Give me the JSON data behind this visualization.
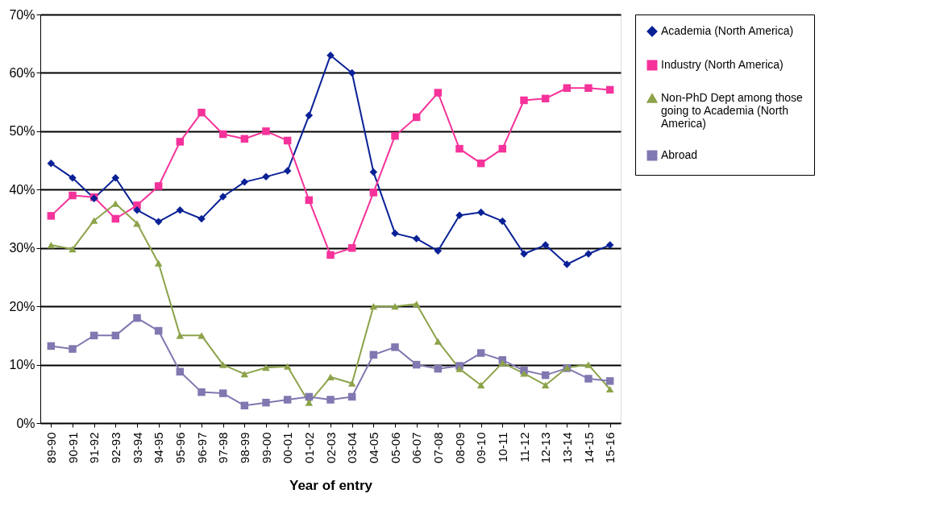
{
  "chart_data": {
    "type": "line",
    "xlabel": "Year of entry",
    "categories": [
      "89-90",
      "90-91",
      "91-92",
      "92-93",
      "93-94",
      "94-95",
      "95-96",
      "96-97",
      "97-98",
      "98-99",
      "99-00",
      "00-01",
      "01-02",
      "02-03",
      "03-04",
      "04-05",
      "05-06",
      "06-07",
      "07-08",
      "08-09",
      "09-10",
      "10-11",
      "11-12",
      "12-13",
      "13-14",
      "14-15",
      "15-16"
    ],
    "series": [
      {
        "name": "Academia (North America)",
        "color": "#0a2196",
        "marker": "diamond",
        "values": [
          44.5,
          42,
          38.5,
          42,
          36.5,
          34.5,
          36.5,
          35,
          38.8,
          41.3,
          42.2,
          43.2,
          52.7,
          63,
          60,
          43,
          32.5,
          31.6,
          29.5,
          35.6,
          36.1,
          34.6,
          29,
          30.5,
          27.2,
          29,
          30.5
        ]
      },
      {
        "name": "Industry (North America)",
        "color": "#f5339a",
        "marker": "square",
        "values": [
          35.5,
          39,
          38.7,
          35,
          37.3,
          40.6,
          48.2,
          53.2,
          49.5,
          48.7,
          50,
          48.4,
          38.2,
          28.8,
          30,
          39.5,
          49.2,
          52.4,
          56.6,
          47,
          44.5,
          47,
          55.3,
          55.6,
          57.4,
          57.4,
          57.1
        ]
      },
      {
        "name": "Non-PhD Dept among those going to Academia (North America)",
        "color": "#8ca34a",
        "marker": "triangle",
        "values": [
          30.5,
          29.8,
          34.7,
          37.6,
          34.2,
          27.4,
          15,
          15,
          10,
          8.4,
          9.5,
          9.7,
          3.5,
          7.9,
          6.8,
          20,
          20,
          20.4,
          14,
          9.3,
          6.5,
          10.3,
          8.5,
          6.5,
          9.5,
          10,
          5.8
        ]
      },
      {
        "name": "Abroad",
        "color": "#8078b0",
        "marker": "square",
        "values": [
          13.2,
          12.7,
          15,
          15,
          18,
          15.8,
          8.8,
          5.3,
          5.1,
          3,
          3.5,
          4,
          4.5,
          4,
          4.5,
          11.7,
          13,
          10,
          9.3,
          9.8,
          12,
          10.8,
          9,
          8.2,
          9.4,
          7.6,
          7.2
        ]
      }
    ],
    "ylim": [
      0,
      70
    ],
    "yticks": [
      {
        "value": 0,
        "label": "0%"
      },
      {
        "value": 10,
        "label": "10%"
      },
      {
        "value": 20,
        "label": "20%"
      },
      {
        "value": 30,
        "label": "30%"
      },
      {
        "value": 40,
        "label": "40%"
      },
      {
        "value": 50,
        "label": "50%"
      },
      {
        "value": 60,
        "label": "60%"
      },
      {
        "value": 70,
        "label": "70%"
      }
    ],
    "grid": "y",
    "legend": "right",
    "line_style": "solid"
  }
}
